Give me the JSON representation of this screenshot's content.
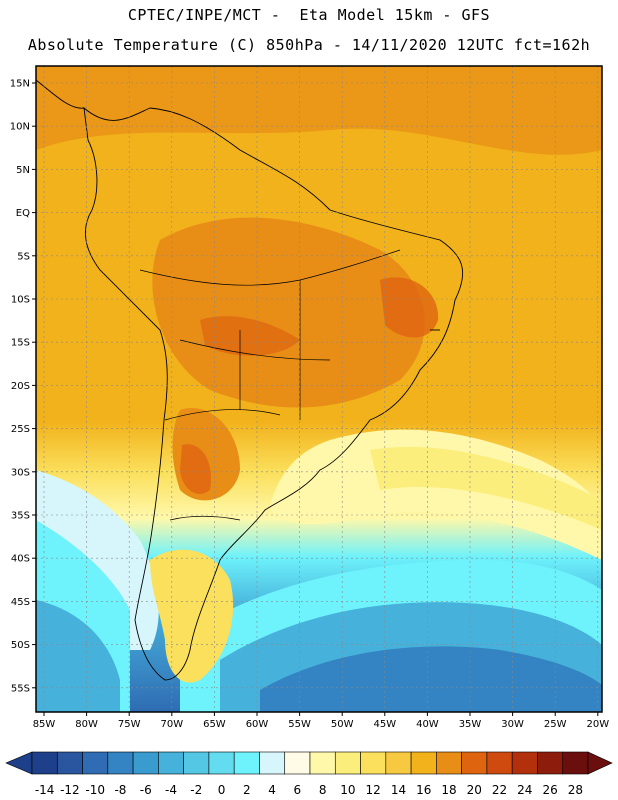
{
  "header": {
    "line1": "CPTEC/INPE/MCT -  Eta Model 15km - GFS",
    "line2": "Absolute Temperature (C) 850hPa - 14/11/2020 12UTC fct=162h"
  },
  "map": {
    "lat_labels": [
      "15N",
      "10N",
      "5N",
      "EQ",
      "5S",
      "10S",
      "15S",
      "20S",
      "25S",
      "30S",
      "35S",
      "40S",
      "45S",
      "50S",
      "55S"
    ],
    "lon_labels": [
      "85W",
      "80W",
      "75W",
      "70W",
      "65W",
      "60W",
      "55W",
      "50W",
      "45W",
      "40W",
      "35W",
      "30W",
      "25W",
      "20W"
    ]
  },
  "legend": {
    "labels": [
      "-14",
      "-12",
      "-10",
      "-8",
      "-6",
      "-4",
      "-2",
      "0",
      "2",
      "4",
      "6",
      "8",
      "10",
      "12",
      "14",
      "16",
      "18",
      "20",
      "22",
      "24",
      "26",
      "28"
    ],
    "colors": [
      "#1e3f8a",
      "#2a56a0",
      "#2f6cb3",
      "#3483c2",
      "#3a9bcf",
      "#46b2dc",
      "#54c7e5",
      "#64dcef",
      "#6ef2fb",
      "#d7f6fb",
      "#fffbe6",
      "#fff8aa",
      "#fcee7d",
      "#fbe05d",
      "#f6c940",
      "#f2b21b",
      "#e88e17",
      "#de6410",
      "#cf4a0e",
      "#b3300c",
      "#8e1c0c",
      "#6a0e0e"
    ]
  }
}
